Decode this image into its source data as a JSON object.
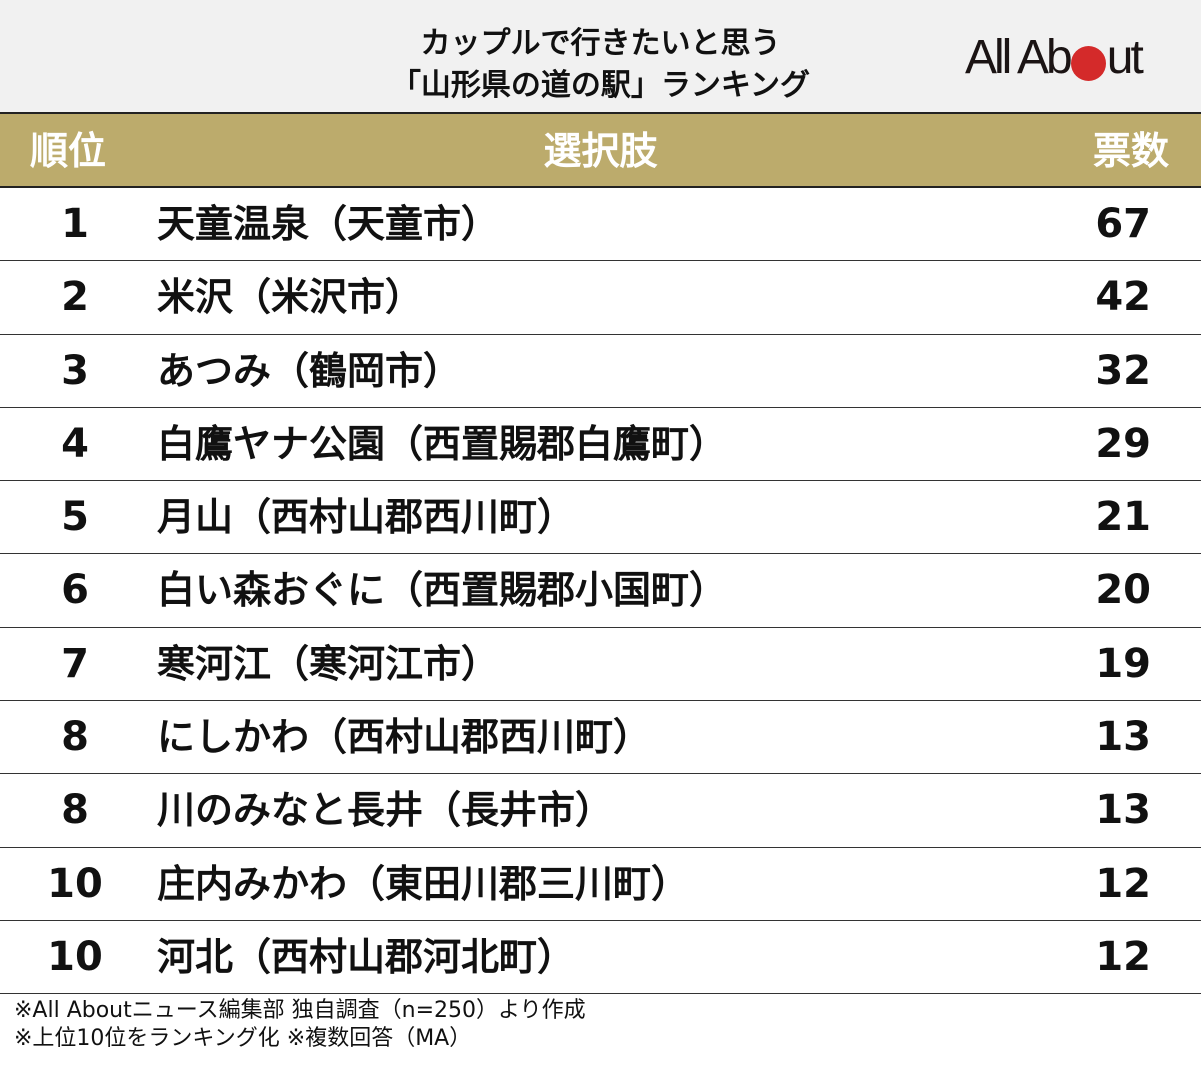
{
  "header": {
    "title_line1": "カップルで行きたいと思う",
    "title_line2": "「山形県の道の駅」ランキング",
    "logo": {
      "text_before": "All Ab",
      "text_after": "ut",
      "dot_color": "#d42a2a"
    }
  },
  "colors": {
    "header_bg": "#f1f1f1",
    "column_header_bg": "#bcab6c",
    "text": "#111111"
  },
  "columns": {
    "rank": "順位",
    "name": "選択肢",
    "votes": "票数"
  },
  "rows": [
    {
      "rank": "1",
      "name": "天童温泉（天童市）",
      "votes": "67"
    },
    {
      "rank": "2",
      "name": "米沢（米沢市）",
      "votes": "42"
    },
    {
      "rank": "3",
      "name": "あつみ（鶴岡市）",
      "votes": "32"
    },
    {
      "rank": "4",
      "name": "白鷹ヤナ公園（西置賜郡白鷹町）",
      "votes": "29"
    },
    {
      "rank": "5",
      "name": "月山（西村山郡西川町）",
      "votes": "21"
    },
    {
      "rank": "6",
      "name": "白い森おぐに（西置賜郡小国町）",
      "votes": "20"
    },
    {
      "rank": "7",
      "name": "寒河江（寒河江市）",
      "votes": "19"
    },
    {
      "rank": "8",
      "name": "にしかわ（西村山郡西川町）",
      "votes": "13"
    },
    {
      "rank": "8",
      "name": "川のみなと長井（長井市）",
      "votes": "13"
    },
    {
      "rank": "10",
      "name": "庄内みかわ（東田川郡三川町）",
      "votes": "12"
    },
    {
      "rank": "10",
      "name": "河北（西村山郡河北町）",
      "votes": "12"
    }
  ],
  "notes": {
    "line1": "※All Aboutニュース編集部 独自調査（n=250）より作成",
    "line2": "※上位10位をランキング化 ※複数回答（MA）"
  },
  "chart_data": {
    "type": "table",
    "title": "カップルで行きたいと思う「山形県の道の駅」ランキング",
    "columns": [
      "順位",
      "選択肢",
      "票数"
    ],
    "categories": [
      "天童温泉（天童市）",
      "米沢（米沢市）",
      "あつみ（鶴岡市）",
      "白鷹ヤナ公園（西置賜郡白鷹町）",
      "月山（西村山郡西川町）",
      "白い森おぐに（西置賜郡小国町）",
      "寒河江（寒河江市）",
      "にしかわ（西村山郡西川町）",
      "川のみなと長井（長井市）",
      "庄内みかわ（東田川郡三川町）",
      "河北（西村山郡河北町）"
    ],
    "ranks": [
      1,
      2,
      3,
      4,
      5,
      6,
      7,
      8,
      8,
      10,
      10
    ],
    "values": [
      67,
      42,
      32,
      29,
      21,
      20,
      19,
      13,
      13,
      12,
      12
    ],
    "notes": [
      "※All Aboutニュース編集部 独自調査（n=250）より作成",
      "※上位10位をランキング化 ※複数回答（MA）"
    ]
  }
}
